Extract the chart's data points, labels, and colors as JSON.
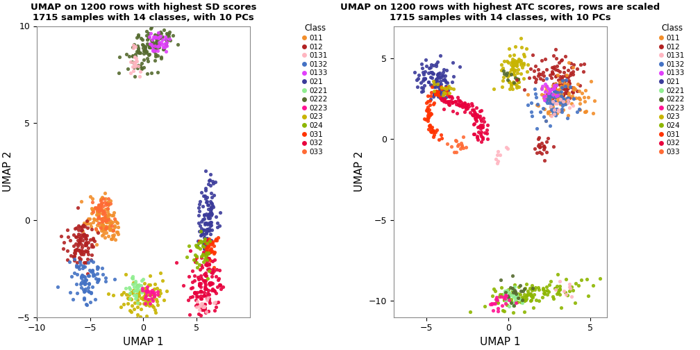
{
  "title1": "UMAP on 1200 rows with highest SD scores\n1715 samples with 14 classes, with 10 PCs",
  "title2": "UMAP on 1200 rows with highest ATC scores, rows are scaled\n1715 samples with 14 classes, with 10 PCs",
  "xlabel": "UMAP 1",
  "ylabel": "UMAP 2",
  "classes": [
    "011",
    "012",
    "0131",
    "0132",
    "0133",
    "021",
    "0221",
    "0222",
    "0223",
    "023",
    "024",
    "031",
    "032",
    "033"
  ],
  "colors": {
    "011": "#F28E2B",
    "012": "#B22222",
    "0131": "#FFB6C1",
    "0132": "#4472C4",
    "0133": "#E040FB",
    "021": "#3B3B9A",
    "0221": "#90EE90",
    "0222": "#556B2F",
    "0223": "#FF1493",
    "023": "#C8B400",
    "024": "#8DB600",
    "031": "#FF3300",
    "032": "#E8003D",
    "033": "#FF6B35"
  },
  "xlim1": [
    -10,
    10
  ],
  "ylim1": [
    -5,
    10
  ],
  "xticks1": [
    -10,
    -5,
    0,
    5
  ],
  "yticks1": [
    -5,
    0,
    5,
    10
  ],
  "xlim2": [
    -7,
    6
  ],
  "ylim2": [
    -11,
    7
  ],
  "xticks2": [
    -5,
    0,
    5
  ],
  "yticks2": [
    -10,
    -5,
    0,
    5
  ],
  "seed": 123,
  "point_size": 14,
  "alpha": 0.9
}
